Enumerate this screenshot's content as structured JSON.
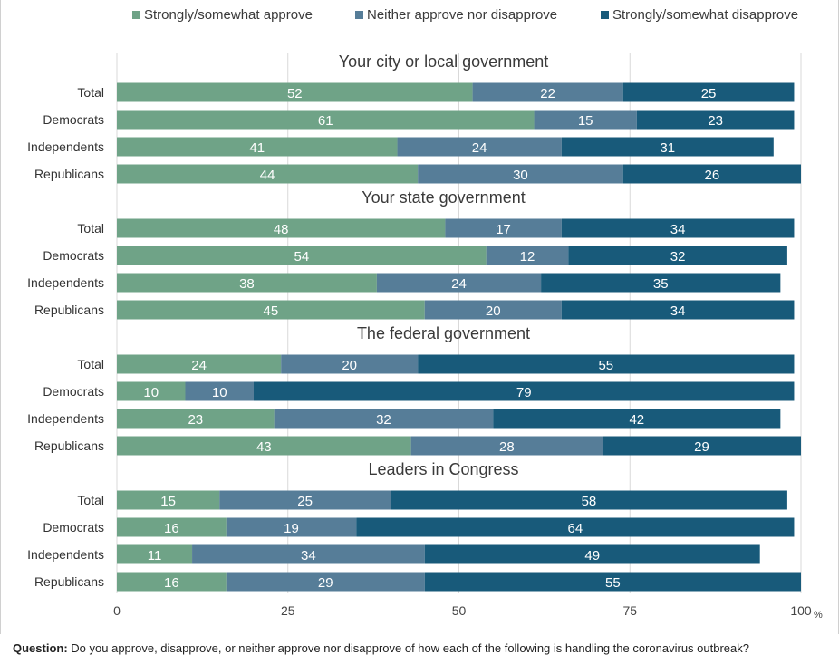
{
  "chart_data": {
    "type": "bar",
    "orientation": "horizontal",
    "stacked": true,
    "legend": [
      {
        "name": "Strongly/somewhat approve",
        "color": "#6fa387"
      },
      {
        "name": "Neither approve nor disapprove",
        "color": "#567d98"
      },
      {
        "name": "Strongly/somewhat disapprove",
        "color": "#185a7a"
      }
    ],
    "legend_position": "top",
    "xlim": [
      0,
      100
    ],
    "x_ticks": [
      "0",
      "25",
      "50",
      "75",
      "100"
    ],
    "x_unit": "%",
    "grid": true,
    "groups": [
      {
        "title": "Your city or local government",
        "rows": [
          {
            "label": "Total",
            "values": [
              52,
              22,
              25
            ]
          },
          {
            "label": "Democrats",
            "values": [
              61,
              15,
              23
            ]
          },
          {
            "label": "Independents",
            "values": [
              41,
              24,
              31
            ]
          },
          {
            "label": "Republicans",
            "values": [
              44,
              30,
              26
            ]
          }
        ]
      },
      {
        "title": "Your state government",
        "rows": [
          {
            "label": "Total",
            "values": [
              48,
              17,
              34
            ]
          },
          {
            "label": "Democrats",
            "values": [
              54,
              12,
              32
            ]
          },
          {
            "label": "Independents",
            "values": [
              38,
              24,
              35
            ]
          },
          {
            "label": "Republicans",
            "values": [
              45,
              20,
              34
            ]
          }
        ]
      },
      {
        "title": "The federal government",
        "rows": [
          {
            "label": "Total",
            "values": [
              24,
              20,
              55
            ]
          },
          {
            "label": "Democrats",
            "values": [
              10,
              10,
              79
            ]
          },
          {
            "label": "Independents",
            "values": [
              23,
              32,
              42
            ]
          },
          {
            "label": "Republicans",
            "values": [
              43,
              28,
              29
            ]
          }
        ]
      },
      {
        "title": "Leaders in Congress",
        "rows": [
          {
            "label": "Total",
            "values": [
              15,
              25,
              58
            ]
          },
          {
            "label": "Democrats",
            "values": [
              16,
              19,
              64
            ]
          },
          {
            "label": "Independents",
            "values": [
              11,
              34,
              49
            ]
          },
          {
            "label": "Republicans",
            "values": [
              16,
              29,
              55
            ]
          }
        ]
      }
    ]
  },
  "footer": {
    "question_label": "Question:",
    "question_text": "Do you approve, disapprove, or neither approve nor disapprove of how each of the following is handling the coronavirus outbreak?"
  }
}
